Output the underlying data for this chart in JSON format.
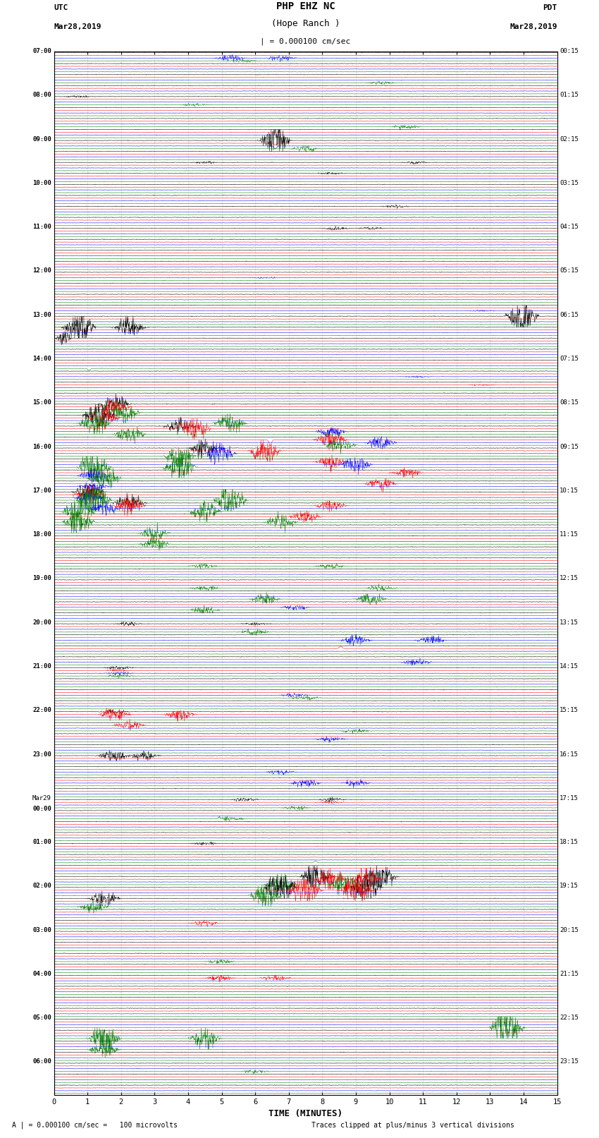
{
  "title_line1": "PHP EHZ NC",
  "title_line2": "(Hope Ranch )",
  "scale_label": "| = 0.000100 cm/sec",
  "left_header1": "UTC",
  "left_header2": "Mar28,2019",
  "right_header1": "PDT",
  "right_header2": "Mar28,2019",
  "xlabel": "TIME (MINUTES)",
  "footer_left": "A | = 0.000100 cm/sec =   100 microvolts",
  "footer_right": "Traces clipped at plus/minus 3 vertical divisions",
  "xlim": [
    0,
    15
  ],
  "xticks": [
    0,
    1,
    2,
    3,
    4,
    5,
    6,
    7,
    8,
    9,
    10,
    11,
    12,
    13,
    14,
    15
  ],
  "background_color": "#ffffff",
  "trace_colors": [
    "black",
    "red",
    "blue",
    "green"
  ],
  "left_labels": [
    "07:00",
    "",
    "",
    "",
    "08:00",
    "",
    "",
    "",
    "09:00",
    "",
    "",
    "",
    "10:00",
    "",
    "",
    "",
    "11:00",
    "",
    "",
    "",
    "12:00",
    "",
    "",
    "",
    "13:00",
    "",
    "",
    "",
    "14:00",
    "",
    "",
    "",
    "15:00",
    "",
    "",
    "",
    "16:00",
    "",
    "",
    "",
    "17:00",
    "",
    "",
    "",
    "18:00",
    "",
    "",
    "",
    "19:00",
    "",
    "",
    "",
    "20:00",
    "",
    "",
    "",
    "21:00",
    "",
    "",
    "",
    "22:00",
    "",
    "",
    "",
    "23:00",
    "",
    "",
    "",
    "Mar29",
    "00:00",
    "",
    "",
    "01:00",
    "",
    "",
    "",
    "02:00",
    "",
    "",
    "",
    "03:00",
    "",
    "",
    "",
    "04:00",
    "",
    "",
    "",
    "05:00",
    "",
    "",
    "",
    "06:00",
    "",
    ""
  ],
  "right_labels": [
    "00:15",
    "",
    "",
    "",
    "01:15",
    "",
    "",
    "",
    "02:15",
    "",
    "",
    "",
    "03:15",
    "",
    "",
    "",
    "04:15",
    "",
    "",
    "",
    "05:15",
    "",
    "",
    "",
    "06:15",
    "",
    "",
    "",
    "07:15",
    "",
    "",
    "",
    "08:15",
    "",
    "",
    "",
    "09:15",
    "",
    "",
    "",
    "10:15",
    "",
    "",
    "",
    "11:15",
    "",
    "",
    "",
    "12:15",
    "",
    "",
    "",
    "13:15",
    "",
    "",
    "",
    "14:15",
    "",
    "",
    "",
    "15:15",
    "",
    "",
    "",
    "16:15",
    "",
    "",
    "",
    "17:15",
    "",
    "",
    "",
    "18:15",
    "",
    "",
    "",
    "19:15",
    "",
    "",
    "",
    "20:15",
    "",
    "",
    "",
    "21:15",
    "",
    "",
    "",
    "22:15",
    "",
    "",
    "",
    "23:15",
    ""
  ],
  "n_groups": 24,
  "traces_per_group": 4,
  "seed": 42,
  "n_pts": 1800,
  "noise_amp_small": 0.003,
  "noise_amp_medium": 0.008,
  "trace_lw": 0.35
}
